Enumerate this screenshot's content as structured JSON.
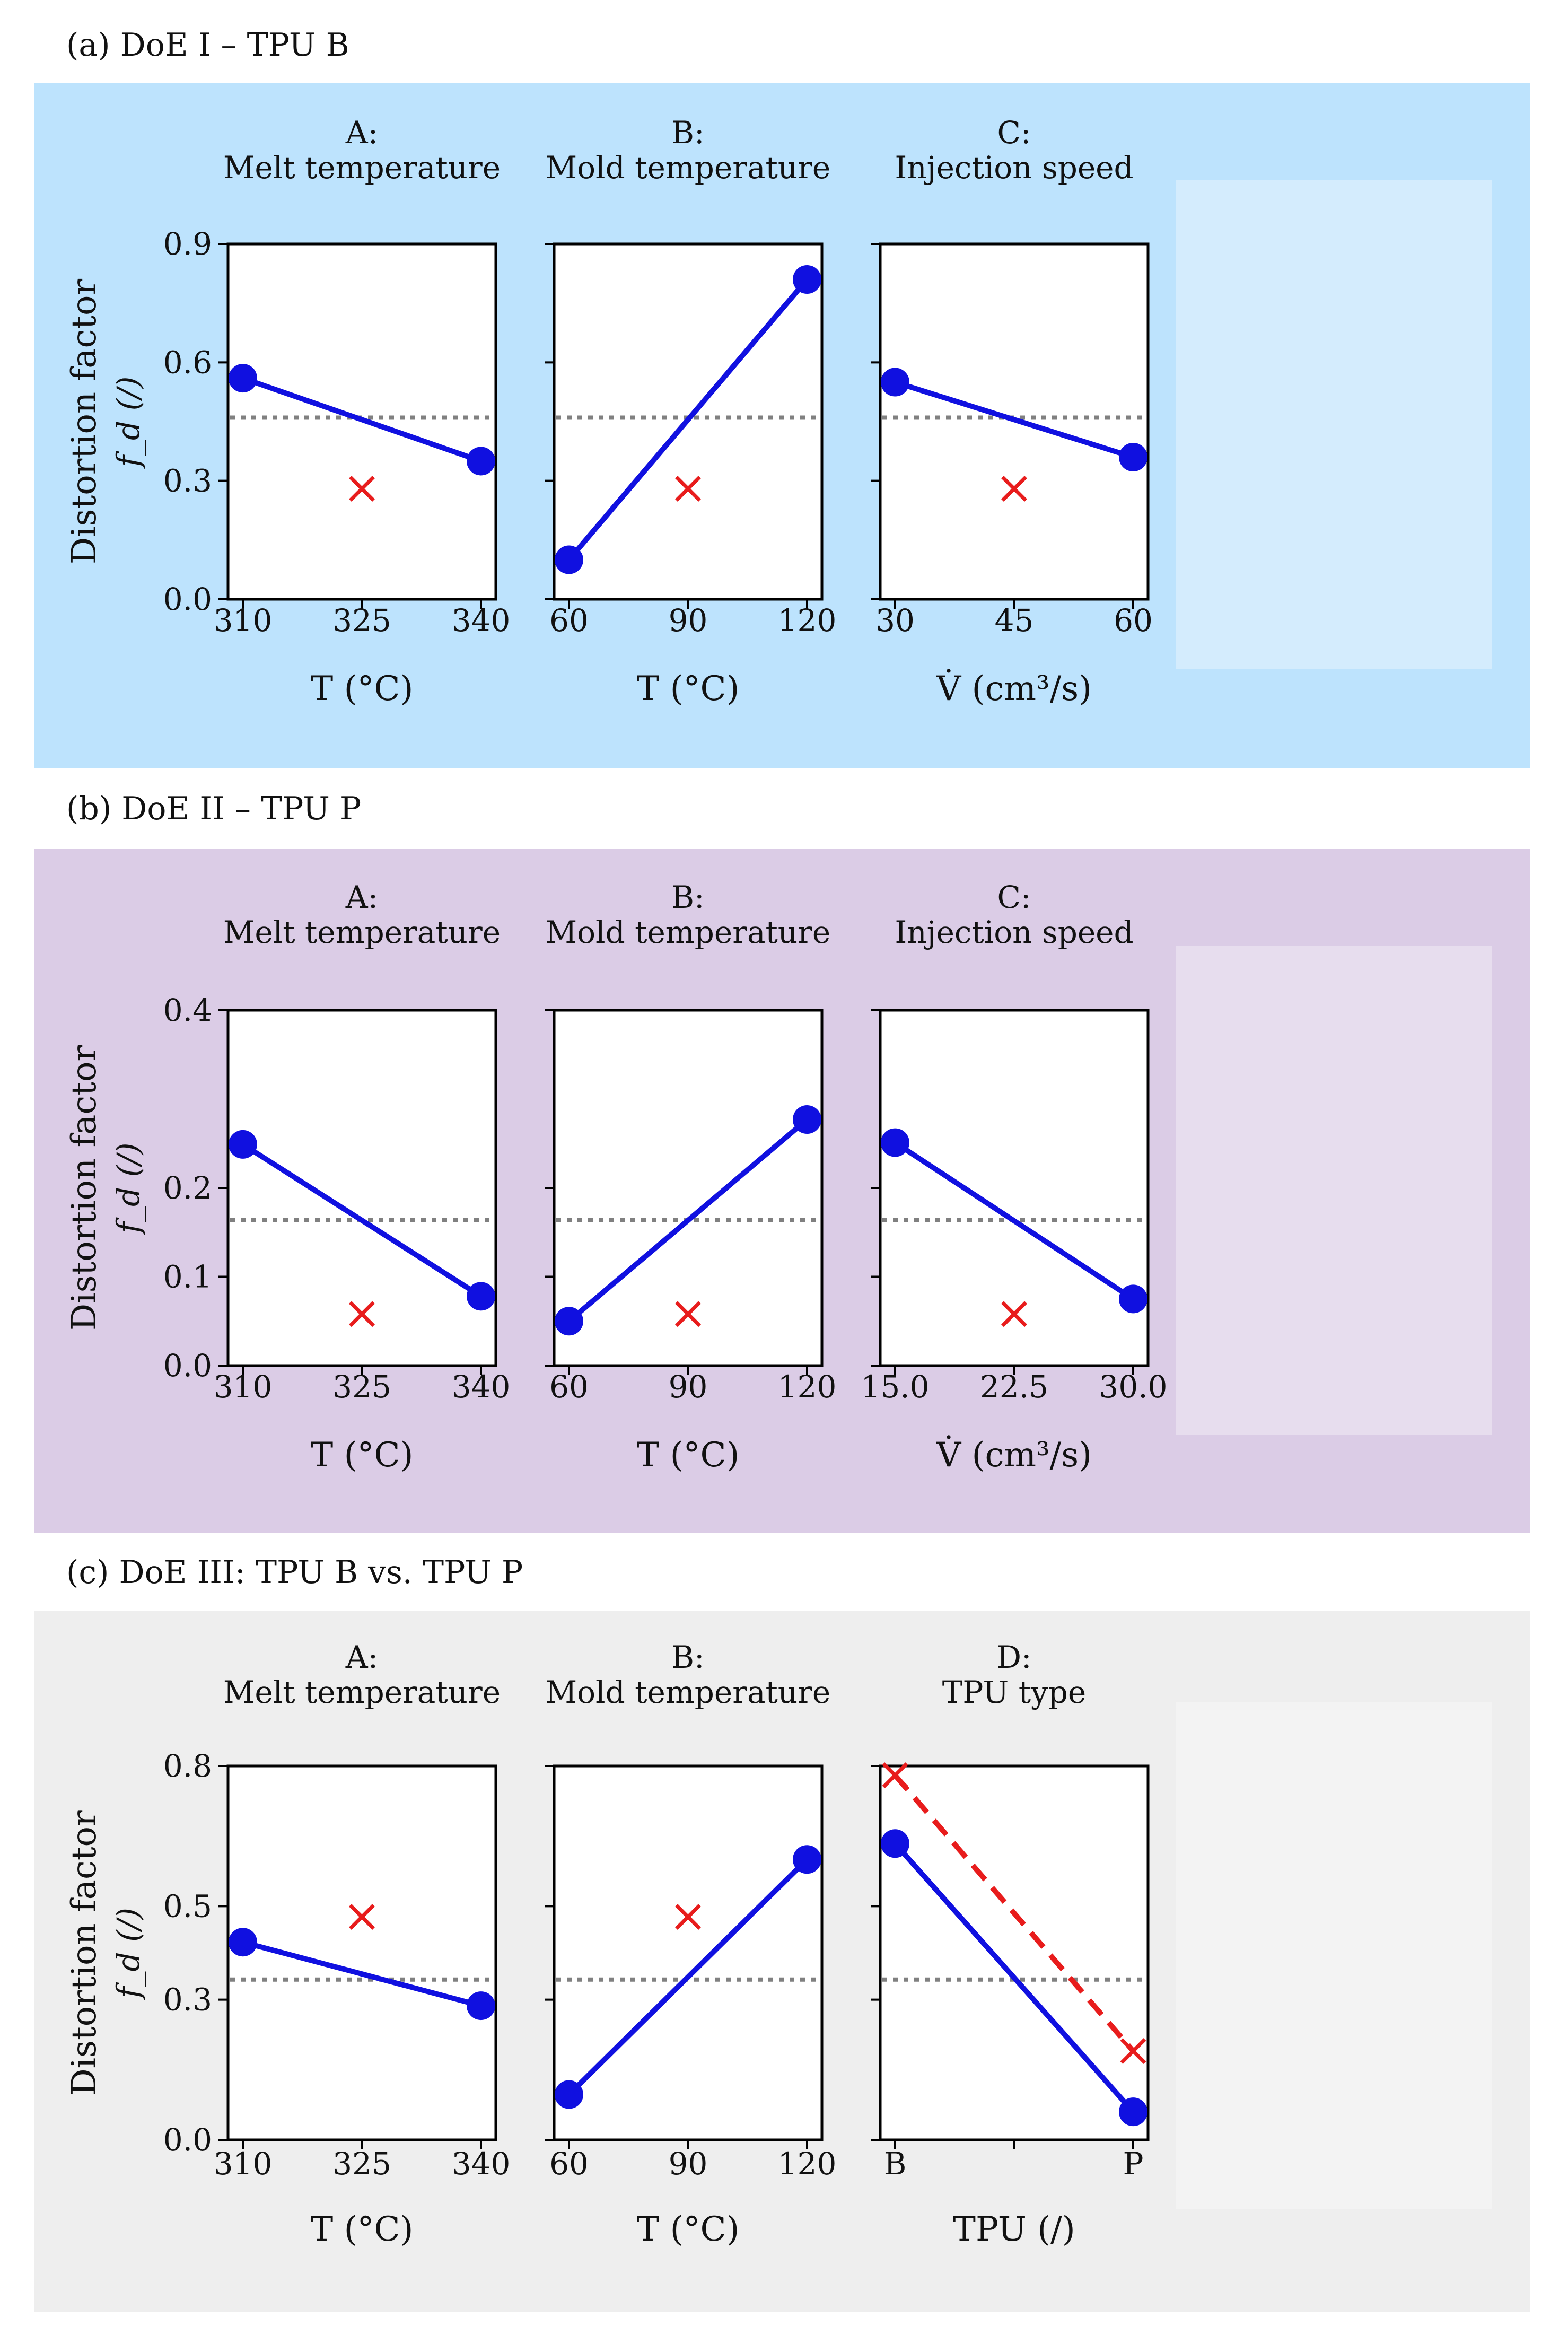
{
  "colors": {
    "panel_a_bg": "#bde3fd",
    "panel_b_bg": "#dbcce6",
    "panel_c_bg": "#eeeeee",
    "main_series": "#1010e0",
    "interaction": "#e81c1c",
    "reference": "#808080"
  },
  "chart_data": [
    {
      "type": "line",
      "panel_title": "(a) DoE I – TPU B",
      "ylabel": "Distortion factor",
      "ylabel_symbol": "f_d (/)",
      "ylim": [
        0,
        0.9
      ],
      "yticks": [
        "0.0",
        "0.3",
        "0.6",
        "0.9"
      ],
      "reference_line": 0.46,
      "subplots": [
        {
          "title_line1": "A:",
          "title_line2": "Melt temperature",
          "xlabel": "T (°C)",
          "xticks": [
            "310",
            "325",
            "340"
          ],
          "values": [
            0.56,
            0.35
          ],
          "interaction_points": [
            0.28
          ],
          "interaction_line": false
        },
        {
          "title_line1": "B:",
          "title_line2": "Mold temperature",
          "xlabel": "T (°C)",
          "xticks": [
            "60",
            "90",
            "120"
          ],
          "values": [
            0.1,
            0.81
          ],
          "interaction_points": [
            0.28
          ],
          "interaction_line": false
        },
        {
          "title_line1": "C:",
          "title_line2": "Injection speed",
          "xlabel": "V̇ (cm³/s)",
          "xticks": [
            "30",
            "45",
            "60"
          ],
          "values": [
            0.55,
            0.36
          ],
          "interaction_points": [
            0.28
          ],
          "interaction_line": false
        }
      ]
    },
    {
      "type": "line",
      "panel_title": "(b) DoE II  – TPU P",
      "ylabel": "Distortion factor",
      "ylabel_symbol": "f_d (/)",
      "ylim": [
        0,
        0.4
      ],
      "yticks": [
        "0.0",
        "0.1",
        "0.2",
        "0.4"
      ],
      "reference_line": 0.164,
      "subplots": [
        {
          "title_line1": "A:",
          "title_line2": "Melt temperature",
          "xlabel": "T (°C)",
          "xticks": [
            "310",
            "325",
            "340"
          ],
          "values": [
            0.249,
            0.078
          ],
          "interaction_points": [
            0.058
          ],
          "interaction_line": false
        },
        {
          "title_line1": "B:",
          "title_line2": "Mold temperature",
          "xlabel": "T (°C)",
          "xticks": [
            "60",
            "90",
            "120"
          ],
          "values": [
            0.05,
            0.277
          ],
          "interaction_points": [
            0.058
          ],
          "interaction_line": false
        },
        {
          "title_line1": "C:",
          "title_line2": "Injection speed",
          "xlabel": "V̇ (cm³/s)",
          "xticks": [
            "15.0",
            "22.5",
            "30.0"
          ],
          "values": [
            0.251,
            0.075
          ],
          "interaction_points": [
            0.058
          ],
          "interaction_line": false
        }
      ]
    },
    {
      "type": "line",
      "panel_title": "(c) DoE III:  TPU B vs. TPU P",
      "ylabel": "Distortion factor",
      "ylabel_symbol": "f_d (/)",
      "ylim": [
        0,
        0.8
      ],
      "yticks": [
        "0.0",
        "0.3",
        "0.5",
        "0.8"
      ],
      "reference_line": 0.343,
      "subplots": [
        {
          "title_line1": "A:",
          "title_line2": "Melt temperature",
          "xlabel": "T (°C)",
          "xticks": [
            "310",
            "325",
            "340"
          ],
          "values": [
            0.423,
            0.287
          ],
          "interaction_points": [
            0.477
          ],
          "interaction_line": false
        },
        {
          "title_line1": "B:",
          "title_line2": "Mold temperature",
          "xlabel": "T (°C)",
          "xticks": [
            "60",
            "90",
            "120"
          ],
          "values": [
            0.097,
            0.6
          ],
          "interaction_points": [
            0.477
          ],
          "interaction_line": false
        },
        {
          "title_line1": "D:",
          "title_line2": "TPU type",
          "xlabel": "TPU (/)",
          "xticks": [
            "B",
            "",
            "P"
          ],
          "values": [
            0.634,
            0.06
          ],
          "interaction_points": [
            0.78,
            0.19
          ],
          "interaction_line": true
        }
      ]
    }
  ]
}
